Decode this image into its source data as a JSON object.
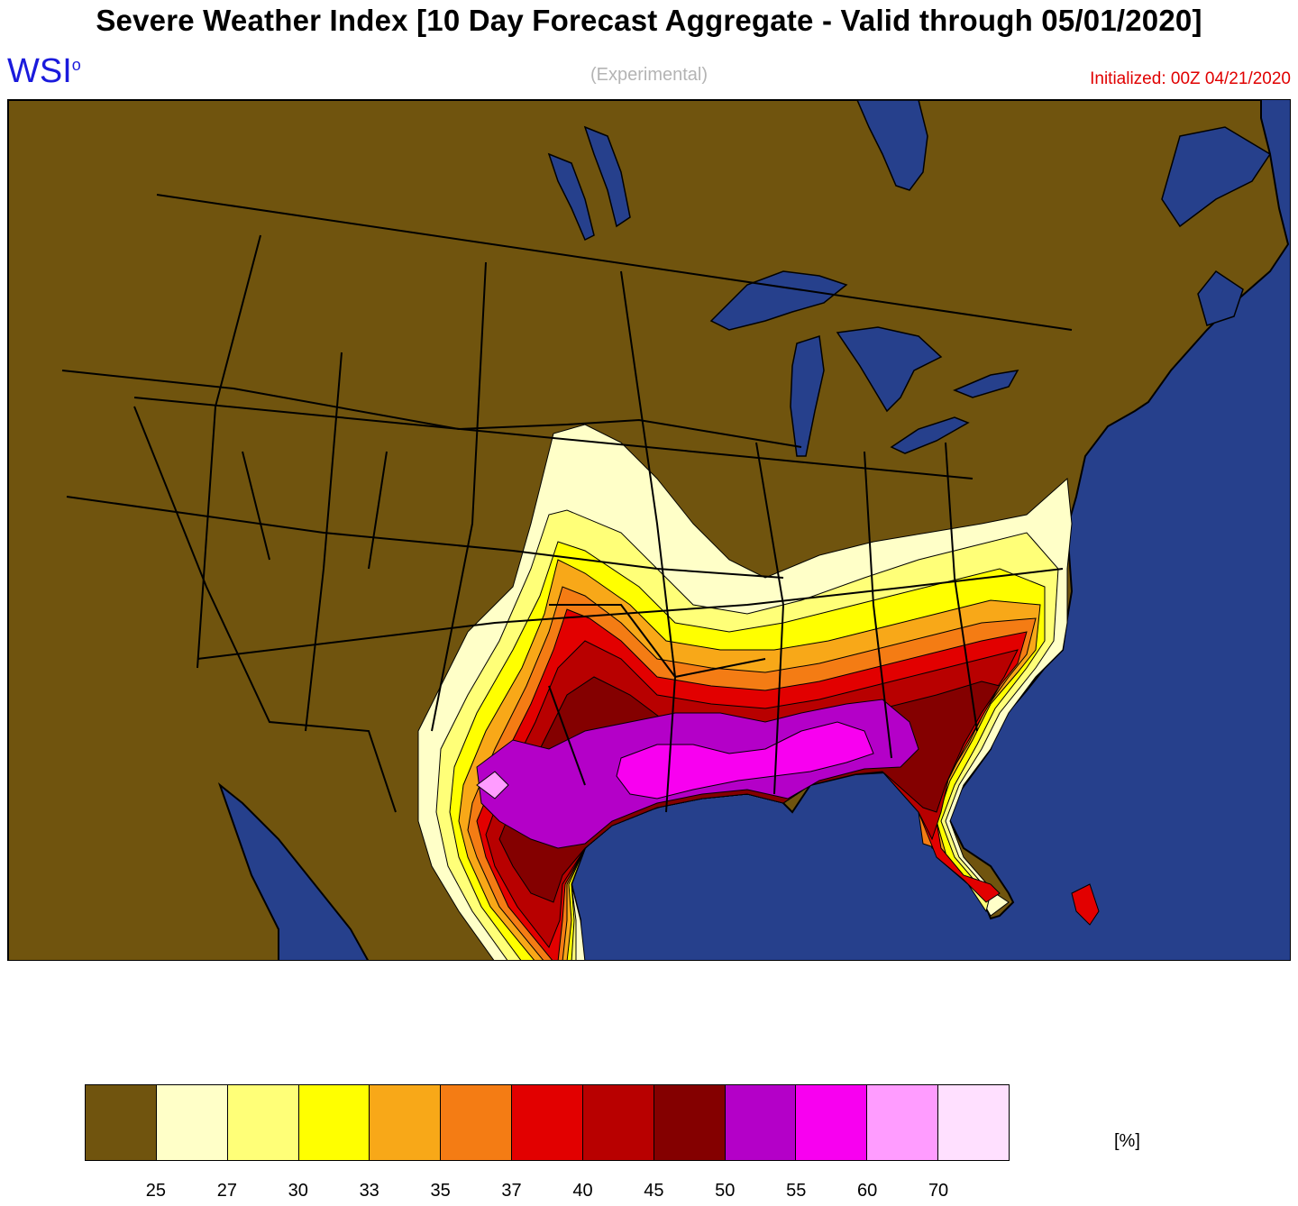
{
  "header": {
    "title": "Severe Weather Index [10 Day Forecast Aggregate - Valid through 05/01/2020]",
    "brand": "WSI",
    "brand_mark": "o",
    "subtitle": "(Experimental)",
    "initialized": "Initialized: 00Z 04/21/2020"
  },
  "map": {
    "region": "Continental United States",
    "colors": {
      "ocean": "#26408c",
      "land_base": "#70540e",
      "borders": "#000000"
    }
  },
  "legend": {
    "unit": "[%]",
    "swatches": [
      "#70540e",
      "#ffffc8",
      "#ffff78",
      "#ffff00",
      "#f8a818",
      "#f47c14",
      "#e20000",
      "#b80000",
      "#840000",
      "#b400c8",
      "#f800f0",
      "#ff9cff",
      "#ffe0ff"
    ],
    "ticks": [
      "25",
      "27",
      "30",
      "33",
      "35",
      "37",
      "40",
      "45",
      "50",
      "55",
      "60",
      "70"
    ]
  }
}
